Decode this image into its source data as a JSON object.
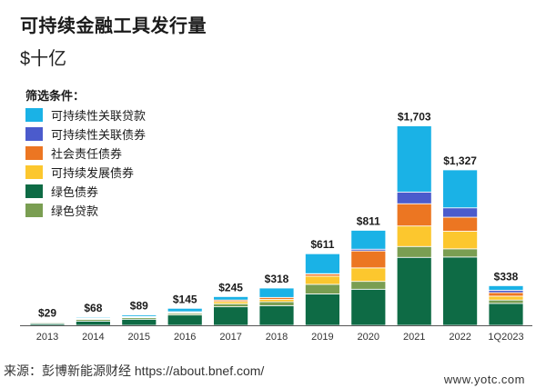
{
  "title": "可持续金融工具发行量",
  "subtitle": "$十亿",
  "legend_title": "筛选条件：",
  "source": "来源：彭博新能源财经  https://about.bnef.com/",
  "watermark": "www.yotc.com",
  "colors": {
    "sustainability_linked_loan": "#1ab2e6",
    "sustainability_linked_bond": "#4b5bcc",
    "social_bond": "#ec7622",
    "sustainability_bond": "#fcc72e",
    "green_bond": "#0e6b45",
    "green_loan": "#7a9e52"
  },
  "chart_data": {
    "type": "bar",
    "stacked": true,
    "title": "可持续金融工具发行量",
    "ylabel": "$十亿",
    "categories": [
      "2013",
      "2014",
      "2015",
      "2016",
      "2017",
      "2018",
      "2019",
      "2020",
      "2021",
      "2022",
      "1Q2023"
    ],
    "totals_labels": [
      "$29",
      "$68",
      "$89",
      "$145",
      "$245",
      "$318",
      "$611",
      "$811",
      "$1,703",
      "$1,327",
      "$338"
    ],
    "ylim": [
      0,
      1800
    ],
    "legend_placement": "top-left",
    "series": [
      {
        "name": "绿色债券",
        "key": "green_bond",
        "values": [
          14,
          36,
          52,
          88,
          158,
          168,
          268,
          308,
          580,
          583,
          187
        ]
      },
      {
        "name": "绿色贷款",
        "key": "green_loan",
        "values": [
          8,
          14,
          13,
          14,
          26,
          33,
          82,
          67,
          93,
          70,
          29
        ]
      },
      {
        "name": "可持续发展债券",
        "key": "sustainability_bond",
        "values": [
          2,
          5,
          6,
          7,
          19,
          20,
          70,
          115,
          175,
          150,
          33
        ]
      },
      {
        "name": "社会责任债券",
        "key": "social_bond",
        "values": [
          2,
          5,
          5,
          7,
          13,
          17,
          18,
          145,
          190,
          120,
          30
        ]
      },
      {
        "name": "可持续性关联债券",
        "key": "sustainability_linked_bond",
        "values": [
          0,
          0,
          0,
          0,
          0,
          0,
          3,
          15,
          100,
          80,
          20
        ]
      },
      {
        "name": "可持续性关联贷款",
        "key": "sustainability_linked_loan",
        "values": [
          3,
          8,
          13,
          29,
          29,
          80,
          170,
          161,
          565,
          324,
          39
        ]
      }
    ]
  }
}
